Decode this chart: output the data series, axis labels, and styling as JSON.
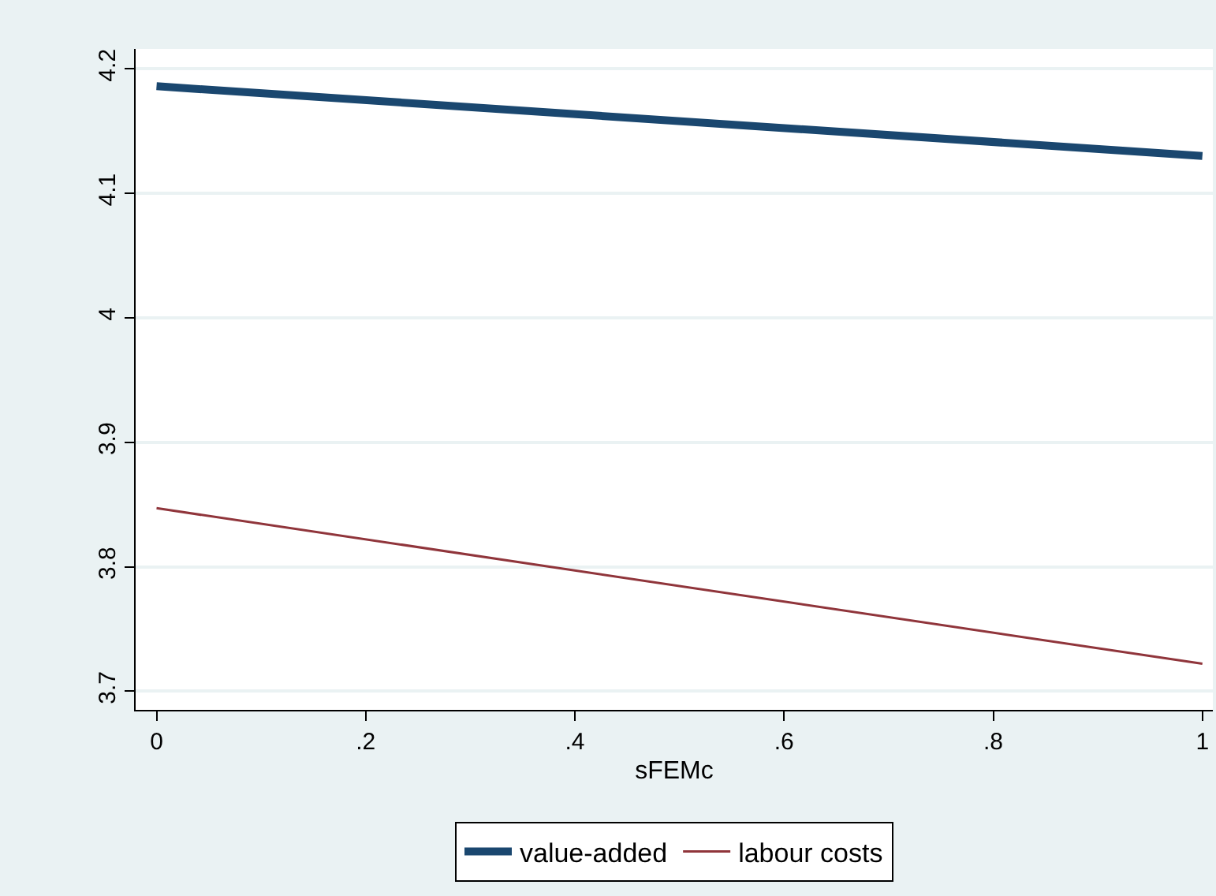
{
  "chart_data": {
    "type": "line",
    "xlabel": "sFEMc",
    "x": [
      0,
      1
    ],
    "series": [
      {
        "name": "value-added",
        "color": "#1a476f",
        "values": [
          4.186,
          4.13
        ]
      },
      {
        "name": "labour costs",
        "color": "#90353b",
        "values": [
          3.847,
          3.722
        ]
      }
    ],
    "xlim": [
      -0.02,
      1.01
    ],
    "xticks": [
      0,
      {
        "value": 0.2,
        "label": ".2"
      },
      {
        "value": 0.4,
        "label": ".4"
      },
      {
        "value": 0.6,
        "label": ".6"
      },
      {
        "value": 0.8,
        "label": ".8"
      },
      1
    ],
    "ylim": [
      3.685,
      4.216
    ],
    "yticks": [
      3.7,
      3.8,
      3.9,
      4,
      4.1,
      4.2
    ],
    "grid": "y",
    "legend": "bottom",
    "marker": "none",
    "line_style": "solid"
  }
}
